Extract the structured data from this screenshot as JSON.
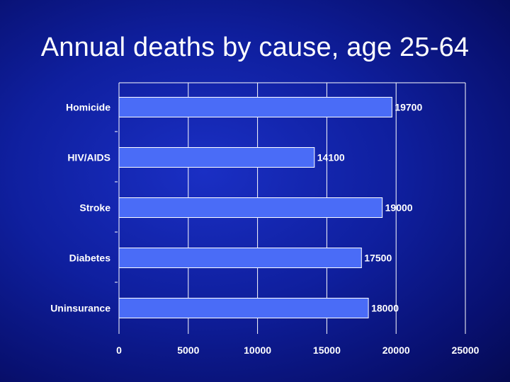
{
  "slide": {
    "title": "Annual deaths by cause, age 25-64"
  },
  "colors": {
    "bar_fill": "#4a6cf7",
    "bar_stroke": "#ffffff",
    "text": "#ffffff",
    "background": "#0f1f9e"
  },
  "chart_data": {
    "type": "bar",
    "orientation": "horizontal",
    "title": "Annual deaths by cause, age 25-64",
    "xlabel": "",
    "ylabel": "",
    "categories": [
      "Homicide",
      "HIV/AIDS",
      "Stroke",
      "Diabetes",
      "Uninsurance"
    ],
    "values": [
      19700,
      14100,
      19000,
      17500,
      18000
    ],
    "value_labels": [
      "19700",
      "14100",
      "19000",
      "17500",
      "18000"
    ],
    "xlim": [
      0,
      25000
    ],
    "xticks": [
      0,
      5000,
      10000,
      15000,
      20000,
      25000
    ],
    "xtick_labels": [
      "0",
      "5000",
      "10000",
      "15000",
      "20000",
      "25000"
    ],
    "grid": true,
    "legend": "none"
  }
}
